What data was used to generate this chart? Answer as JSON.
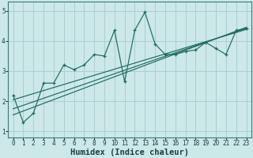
{
  "xlabel": "Humidex (Indice chaleur)",
  "bg_color": "#cde8e8",
  "grid_color": "#aacfcf",
  "line_color": "#1e6b5e",
  "x_data": [
    0,
    1,
    2,
    3,
    4,
    5,
    6,
    7,
    8,
    9,
    10,
    11,
    12,
    13,
    14,
    15,
    16,
    17,
    18,
    19,
    20,
    21,
    22,
    23
  ],
  "y_data": [
    2.2,
    1.3,
    1.6,
    2.6,
    2.6,
    3.2,
    3.05,
    3.2,
    3.55,
    3.5,
    4.35,
    2.65,
    4.35,
    4.95,
    3.9,
    3.55,
    3.55,
    3.65,
    3.7,
    3.95,
    3.75,
    3.55,
    4.35,
    4.4
  ],
  "reg_lines": [
    {
      "x0": 0,
      "y0": 2.05,
      "x1": 23,
      "y1": 4.38
    },
    {
      "x0": 0,
      "y0": 1.75,
      "x1": 23,
      "y1": 4.42
    },
    {
      "x0": 0,
      "y0": 1.55,
      "x1": 23,
      "y1": 4.45
    }
  ],
  "ylim": [
    0.8,
    5.3
  ],
  "xlim": [
    -0.5,
    23.5
  ],
  "yticks": [
    1,
    2,
    3,
    4,
    5
  ],
  "xticks": [
    0,
    1,
    2,
    3,
    4,
    5,
    6,
    7,
    8,
    9,
    10,
    11,
    12,
    13,
    14,
    15,
    16,
    17,
    18,
    19,
    20,
    21,
    22,
    23
  ],
  "tick_fontsize": 5.5,
  "label_fontsize": 7.5
}
